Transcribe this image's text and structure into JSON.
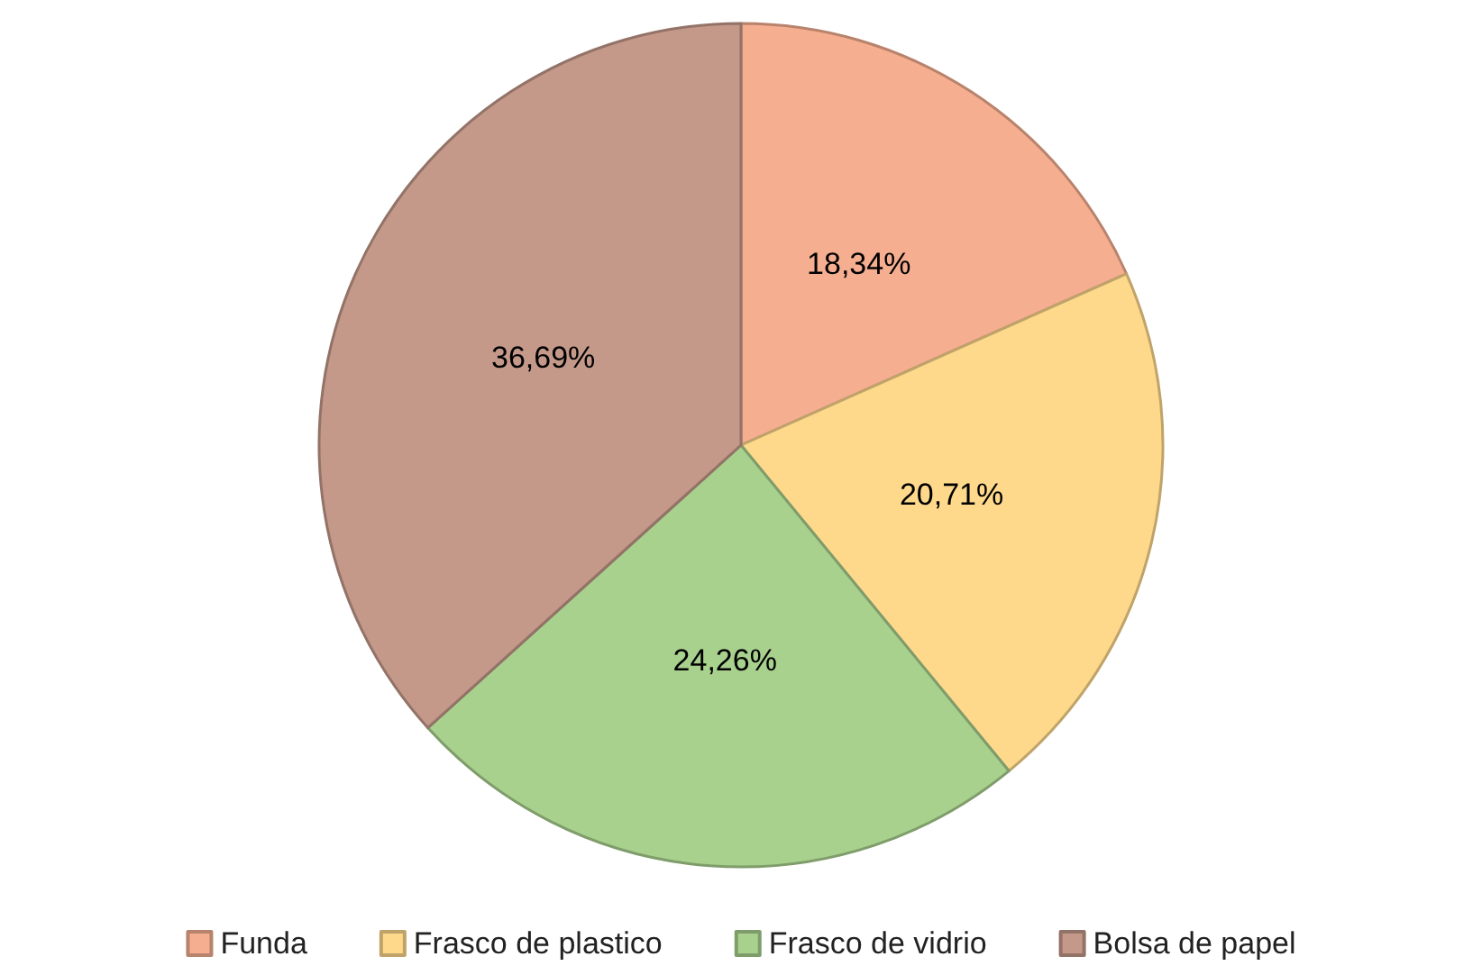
{
  "chart_data": {
    "type": "pie",
    "categories": [
      "Funda",
      "Frasco de plastico",
      "Frasco de vidrio",
      "Bolsa de papel"
    ],
    "values": [
      18.34,
      20.71,
      24.26,
      36.69
    ],
    "colors": [
      "#f5ae90",
      "#fed98c",
      "#a9d18e",
      "#c4998a"
    ],
    "value_labels": [
      "18,34%",
      "20,71%",
      "24,26%",
      "36,69%"
    ],
    "legend": "bottom"
  }
}
